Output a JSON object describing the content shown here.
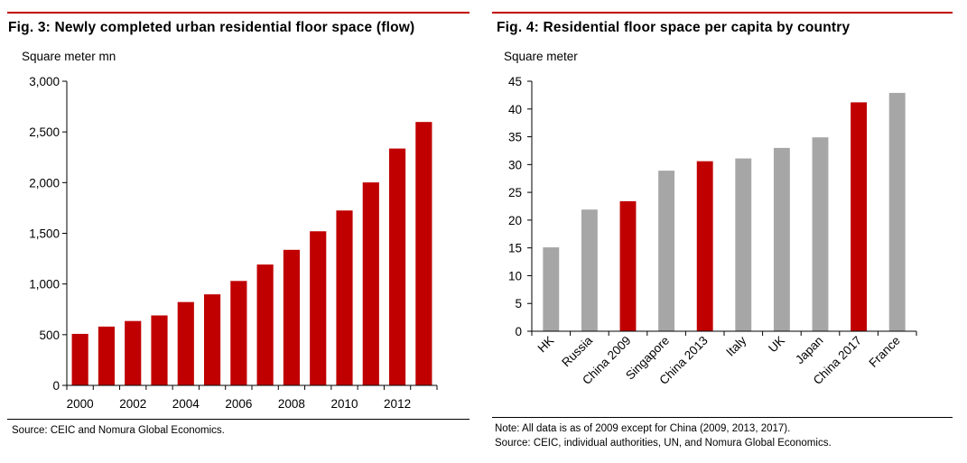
{
  "figures": [
    {
      "title": "Fig. 3: Newly completed urban residential floor space (flow)",
      "unit_label": "Square meter mn",
      "source": "Source: CEIC and Nomura Global Economics."
    },
    {
      "title": "Fig. 4: Residential floor space per capita by country",
      "unit_label": "Square meter",
      "note": "Note: All data is as of 2009 except for China (2009, 2013, 2017).",
      "source": "Source: CEIC, individual authorities, UN, and Nomura Global Economics."
    }
  ],
  "colors": {
    "accent": "#c00000",
    "bar_red": "#c00000",
    "bar_grey": "#a6a6a6",
    "axis": "#000000"
  },
  "chart_data": [
    {
      "type": "bar",
      "title": "Fig. 3: Newly completed urban residential floor space (flow)",
      "ylabel": "Square meter mn",
      "xlabel": "",
      "categories": [
        "2000",
        "2001",
        "2002",
        "2003",
        "2004",
        "2005",
        "2006",
        "2007",
        "2008",
        "2009",
        "2010",
        "2011",
        "2012",
        "2013"
      ],
      "x_tick_labels": [
        "2000",
        "",
        "2002",
        "",
        "2004",
        "",
        "2006",
        "",
        "2008",
        "",
        "2010",
        "",
        "2012",
        ""
      ],
      "values": [
        508,
        580,
        635,
        690,
        822,
        898,
        1030,
        1192,
        1337,
        1520,
        1725,
        2002,
        2336,
        2598
      ],
      "ylim": [
        0,
        3000
      ],
      "y_ticks": [
        0,
        500,
        1000,
        1500,
        2000,
        2500,
        3000
      ],
      "y_tick_labels": [
        "0",
        "500",
        "1,000",
        "1,500",
        "2,000",
        "2,500",
        "3,000"
      ],
      "bar_colors": [
        "red",
        "red",
        "red",
        "red",
        "red",
        "red",
        "red",
        "red",
        "red",
        "red",
        "red",
        "red",
        "red",
        "red"
      ],
      "grid": false,
      "legend": false
    },
    {
      "type": "bar",
      "title": "Fig. 4: Residential floor space per capita by country",
      "ylabel": "Square meter",
      "xlabel": "",
      "categories": [
        "HK",
        "Russia",
        "China 2009",
        "Singapore",
        "China 2013",
        "Italy",
        "UK",
        "Japan",
        "China 2017",
        "France"
      ],
      "values": [
        15.1,
        21.9,
        23.4,
        28.9,
        30.6,
        31.1,
        33.0,
        34.9,
        41.2,
        42.9
      ],
      "ylim": [
        0,
        45
      ],
      "y_ticks": [
        0,
        5,
        10,
        15,
        20,
        25,
        30,
        35,
        40,
        45
      ],
      "y_tick_labels": [
        "0",
        "5",
        "10",
        "15",
        "20",
        "25",
        "30",
        "35",
        "40",
        "45"
      ],
      "bar_colors": [
        "grey",
        "grey",
        "red",
        "grey",
        "red",
        "grey",
        "grey",
        "grey",
        "red",
        "grey"
      ],
      "grid": false,
      "legend": false
    }
  ]
}
